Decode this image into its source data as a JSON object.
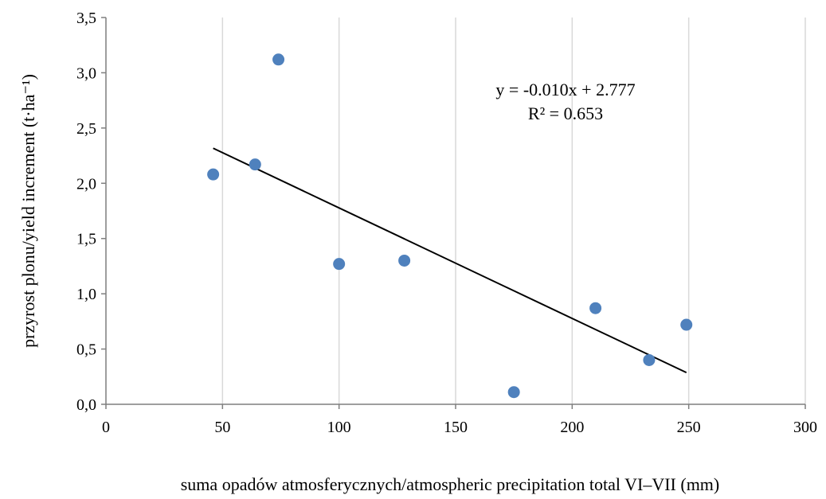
{
  "chart_data": {
    "type": "scatter",
    "xlabel": "suma opadów atmosferycznych/atmospheric  precipitation  total  VI–VII  (mm)",
    "ylabel": "przyrost plonu/yield  increment  (t·ha⁻¹)",
    "xlim": [
      0,
      300
    ],
    "ylim": [
      0,
      3.5
    ],
    "x_ticks": [
      0,
      50,
      100,
      150,
      200,
      250,
      300
    ],
    "x_tick_labels": [
      "0",
      "50",
      "100",
      "150",
      "200",
      "250",
      "300"
    ],
    "y_ticks": [
      0,
      0.5,
      1.0,
      1.5,
      2.0,
      2.5,
      3.0,
      3.5
    ],
    "y_tick_labels": [
      "0,0",
      "0,5",
      "1,0",
      "1,5",
      "2,0",
      "2,5",
      "3,0",
      "3,5"
    ],
    "grid": "vertical",
    "marker_color": "#4f81bd",
    "trend_color": "#000000",
    "points": [
      {
        "x": 46,
        "y": 2.08
      },
      {
        "x": 64,
        "y": 2.17
      },
      {
        "x": 74,
        "y": 3.12
      },
      {
        "x": 100,
        "y": 1.27
      },
      {
        "x": 128,
        "y": 1.3
      },
      {
        "x": 175,
        "y": 0.11
      },
      {
        "x": 210,
        "y": 0.87
      },
      {
        "x": 233,
        "y": 0.4
      },
      {
        "x": 249,
        "y": 0.72
      }
    ],
    "trendline": {
      "slope": -0.01,
      "intercept": 2.777,
      "x_range": [
        46,
        249
      ],
      "equation_label": "y = -0.010x + 2.777",
      "r2_label": "R² = 0.653"
    }
  }
}
